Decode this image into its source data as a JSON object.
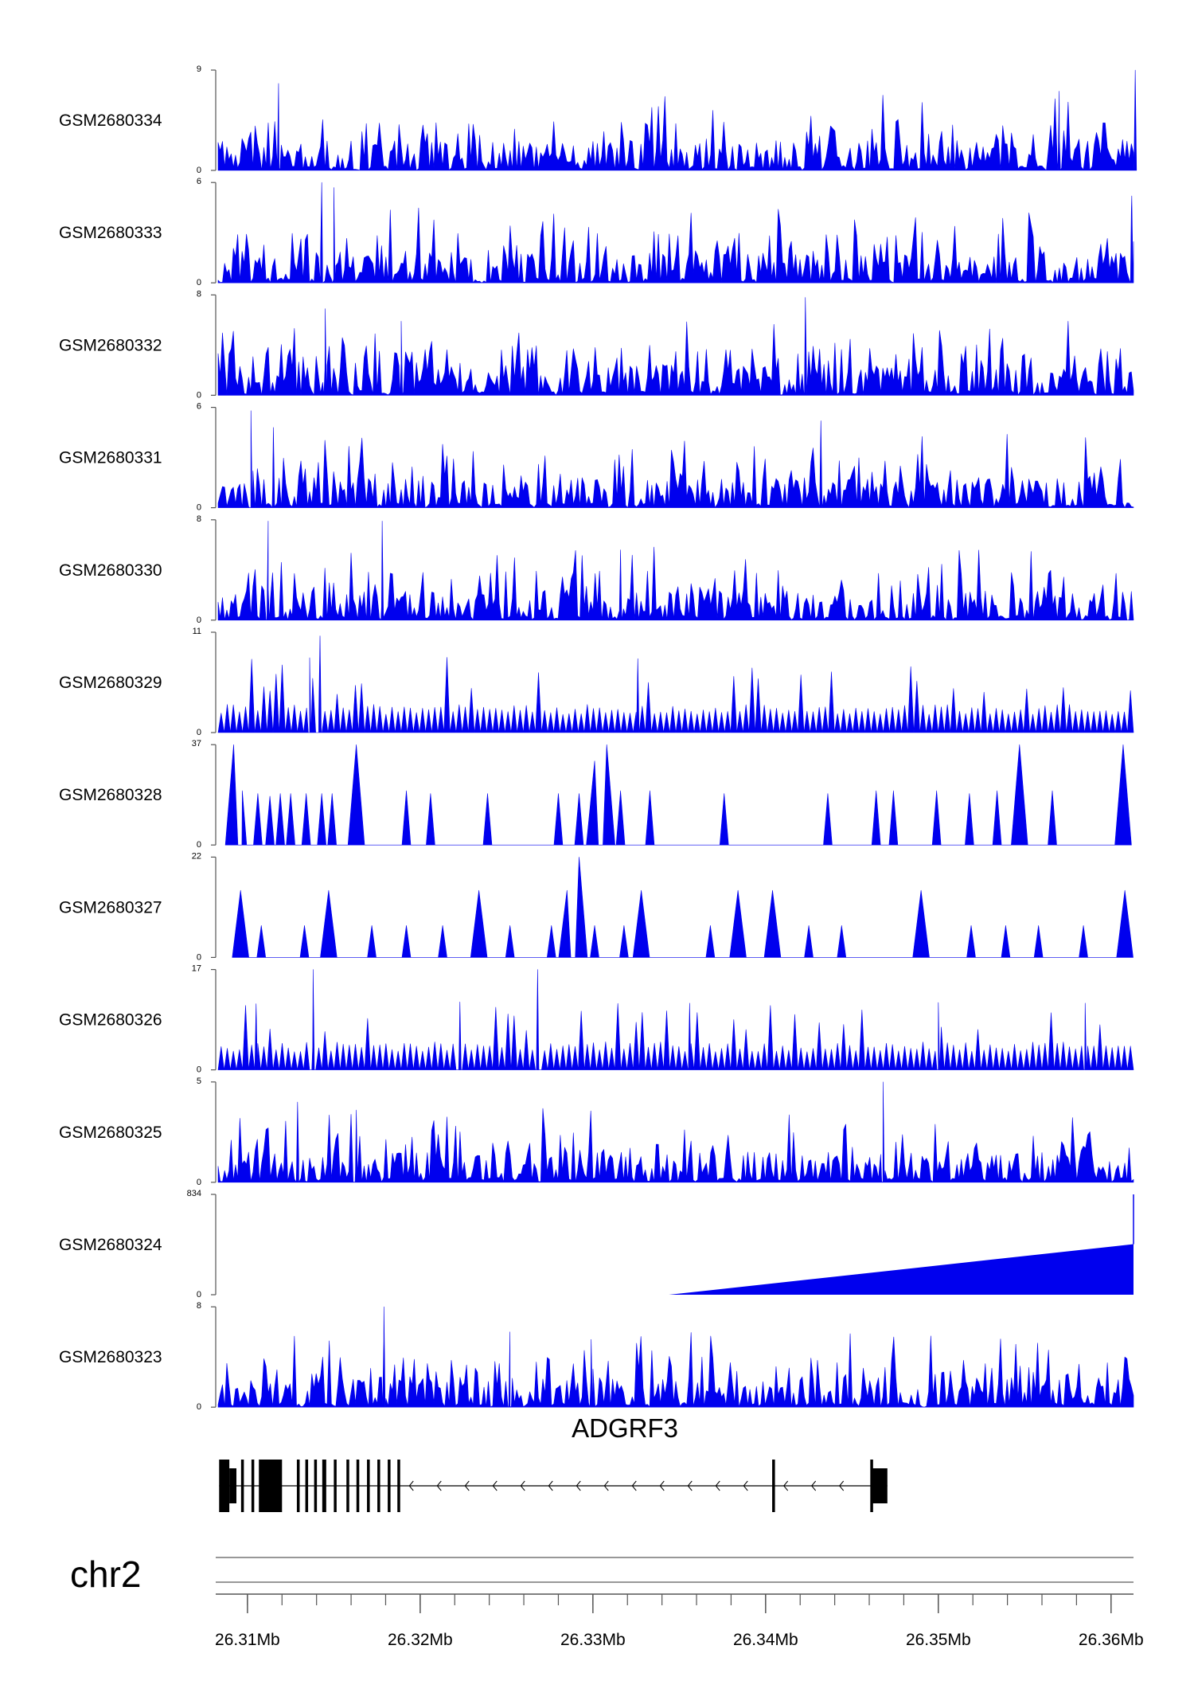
{
  "colors": {
    "signal": "#0000ee",
    "axis": "#555555",
    "gene": "#000000"
  },
  "chart_data": {
    "type": "area",
    "title": "",
    "tracks": [
      {
        "name": "GSM2680334",
        "ymax": 9,
        "ymin": 0,
        "seed": 11,
        "style": "dense",
        "highlights": [
          [
            26.3118,
            7.8
          ],
          [
            26.3614,
            9.0
          ],
          [
            26.357,
            7.1
          ]
        ]
      },
      {
        "name": "GSM2680333",
        "ymax": 6,
        "ymin": 0,
        "seed": 23,
        "style": "dense",
        "highlights": [
          [
            26.3143,
            6.0
          ],
          [
            26.315,
            5.7
          ],
          [
            26.3612,
            5.2
          ]
        ]
      },
      {
        "name": "GSM2680332",
        "ymax": 8,
        "ymin": 0,
        "seed": 37,
        "style": "dense",
        "highlights": [
          [
            26.3145,
            6.9
          ],
          [
            26.3423,
            7.8
          ],
          [
            26.3189,
            5.9
          ]
        ]
      },
      {
        "name": "GSM2680331",
        "ymax": 6,
        "ymin": 0,
        "seed": 41,
        "style": "dense",
        "highlights": [
          [
            26.3102,
            5.8
          ],
          [
            26.3115,
            4.8
          ],
          [
            26.3432,
            5.2
          ]
        ]
      },
      {
        "name": "GSM2680330",
        "ymax": 8,
        "ymin": 0,
        "seed": 53,
        "style": "dense",
        "highlights": [
          [
            26.3112,
            7.9
          ],
          [
            26.3178,
            7.9
          ],
          [
            26.3316,
            5.6
          ]
        ]
      },
      {
        "name": "GSM2680329",
        "ymax": 11,
        "ymin": 0,
        "seed": 67,
        "style": "regular",
        "highlights": [
          [
            26.3142,
            10.6
          ],
          [
            26.3136,
            8.2
          ],
          [
            26.3326,
            8.1
          ]
        ]
      },
      {
        "name": "GSM2680328",
        "ymax": 37,
        "ymin": 0,
        "seed": 71,
        "style": "sparse",
        "peaks": [
          [
            26.3092,
            37
          ],
          [
            26.3097,
            20
          ],
          [
            26.3106,
            19
          ],
          [
            26.3113,
            18
          ],
          [
            26.3119,
            19
          ],
          [
            26.3125,
            19
          ],
          [
            26.3134,
            19
          ],
          [
            26.3143,
            19
          ],
          [
            26.3149,
            19
          ],
          [
            26.3163,
            37
          ],
          [
            26.3192,
            20
          ],
          [
            26.3206,
            19
          ],
          [
            26.3239,
            19
          ],
          [
            26.328,
            19
          ],
          [
            26.3292,
            19
          ],
          [
            26.3301,
            31
          ],
          [
            26.3308,
            37
          ],
          [
            26.3316,
            20
          ],
          [
            26.3333,
            20
          ],
          [
            26.3376,
            19
          ],
          [
            26.3436,
            19
          ],
          [
            26.3464,
            20
          ],
          [
            26.3474,
            20
          ],
          [
            26.3499,
            20
          ],
          [
            26.3518,
            19
          ],
          [
            26.3547,
            37
          ],
          [
            26.3566,
            20
          ],
          [
            26.3607,
            37
          ],
          [
            26.3534,
            20
          ]
        ]
      },
      {
        "name": "GSM2680327",
        "ymax": 22,
        "ymin": 0,
        "seed": 83,
        "style": "sparse",
        "peaks": [
          [
            26.3096,
            14.7
          ],
          [
            26.3108,
            7
          ],
          [
            26.3133,
            7
          ],
          [
            26.3147,
            14.7
          ],
          [
            26.3172,
            7
          ],
          [
            26.3192,
            7
          ],
          [
            26.3213,
            7
          ],
          [
            26.3234,
            14.7
          ],
          [
            26.3252,
            7
          ],
          [
            26.3276,
            7
          ],
          [
            26.3285,
            14.7
          ],
          [
            26.3292,
            22
          ],
          [
            26.3301,
            7
          ],
          [
            26.3318,
            7
          ],
          [
            26.3328,
            14.7
          ],
          [
            26.3368,
            7
          ],
          [
            26.3384,
            14.7
          ],
          [
            26.3404,
            14.7
          ],
          [
            26.3425,
            7
          ],
          [
            26.3444,
            7
          ],
          [
            26.349,
            14.7
          ],
          [
            26.3519,
            7
          ],
          [
            26.3539,
            7
          ],
          [
            26.3558,
            7
          ],
          [
            26.3584,
            7
          ],
          [
            26.3608,
            14.7
          ]
        ]
      },
      {
        "name": "GSM2680326",
        "ymax": 17,
        "ymin": 0,
        "seed": 97,
        "style": "regular",
        "highlights": [
          [
            26.3138,
            17.0
          ],
          [
            26.3268,
            17.0
          ],
          [
            26.3105,
            11.2
          ],
          [
            26.3223,
            11.5
          ],
          [
            26.3356,
            11.3
          ],
          [
            26.35,
            11.4
          ],
          [
            26.3585,
            11.3
          ]
        ]
      },
      {
        "name": "GSM2680325",
        "ymax": 5,
        "ymin": 0,
        "seed": 101,
        "style": "dense",
        "highlights": [
          [
            26.3468,
            5.0
          ],
          [
            26.3129,
            4.0
          ],
          [
            26.3163,
            3.6
          ]
        ]
      },
      {
        "name": "GSM2680324",
        "ymax": 834,
        "ymin": 0,
        "seed": 0,
        "style": "ramp",
        "ramp": {
          "start": 26.3344,
          "end": 26.3613,
          "end_value": 420,
          "spike": 834
        }
      },
      {
        "name": "GSM2680323",
        "ymax": 8,
        "ymin": 0,
        "seed": 113,
        "style": "dense",
        "highlights": [
          [
            26.3179,
            8.0
          ],
          [
            26.3252,
            6.0
          ],
          [
            26.3299,
            5.4
          ]
        ]
      }
    ],
    "x_range": [
      26.3083,
      26.3613
    ],
    "x_ticks": [
      26.31,
      26.32,
      26.33,
      26.34,
      26.35,
      26.36
    ],
    "x_tick_labels": [
      "26.31Mb",
      "26.32Mb",
      "26.33Mb",
      "26.34Mb",
      "26.35Mb",
      "26.36Mb"
    ],
    "x_minor_step": 0.002,
    "gene": {
      "name": "ADGRF3",
      "strand": "-",
      "start": 26.30836,
      "end": 26.34705,
      "exons": [
        {
          "start": 26.30836,
          "end": 26.30895,
          "kind": "cds"
        },
        {
          "start": 26.30895,
          "end": 26.30936,
          "kind": "utr"
        },
        {
          "start": 26.30963,
          "end": 26.30978,
          "kind": "cds"
        },
        {
          "start": 26.31023,
          "end": 26.31038,
          "kind": "cds"
        },
        {
          "start": 26.31066,
          "end": 26.312,
          "kind": "cds"
        },
        {
          "start": 26.31286,
          "end": 26.313,
          "kind": "cds"
        },
        {
          "start": 26.31335,
          "end": 26.3135,
          "kind": "cds"
        },
        {
          "start": 26.31386,
          "end": 26.31401,
          "kind": "cds"
        },
        {
          "start": 26.31433,
          "end": 26.31456,
          "kind": "cds"
        },
        {
          "start": 26.315,
          "end": 26.31512,
          "kind": "cds"
        },
        {
          "start": 26.31573,
          "end": 26.31588,
          "kind": "cds"
        },
        {
          "start": 26.31631,
          "end": 26.31643,
          "kind": "cds"
        },
        {
          "start": 26.31692,
          "end": 26.31705,
          "kind": "cds"
        },
        {
          "start": 26.31752,
          "end": 26.31765,
          "kind": "cds"
        },
        {
          "start": 26.31812,
          "end": 26.31824,
          "kind": "cds"
        },
        {
          "start": 26.31868,
          "end": 26.31882,
          "kind": "cds"
        },
        {
          "start": 26.34038,
          "end": 26.3405,
          "kind": "cds"
        },
        {
          "start": 26.34606,
          "end": 26.34618,
          "kind": "cds"
        },
        {
          "start": 26.34618,
          "end": 26.34705,
          "kind": "utr"
        }
      ]
    },
    "chromosome": "chr2"
  }
}
